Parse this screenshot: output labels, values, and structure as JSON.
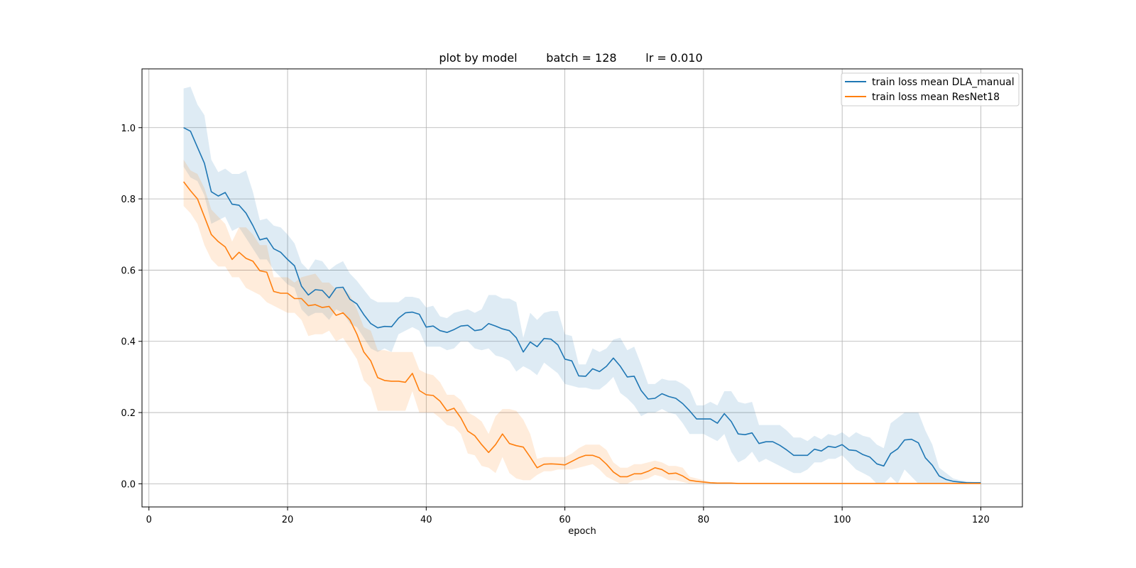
{
  "chart_data": {
    "type": "line",
    "title": "plot by model        batch = 128        lr = 0.010",
    "xlabel": "epoch",
    "ylabel": "",
    "xlim": [
      -1,
      126
    ],
    "ylim": [
      -0.065,
      1.165
    ],
    "xticks": [
      0,
      20,
      40,
      60,
      80,
      100,
      120
    ],
    "yticks": [
      0.0,
      0.2,
      0.4,
      0.6,
      0.8,
      1.0
    ],
    "ytick_labels": [
      "0.0",
      "0.2",
      "0.4",
      "0.6",
      "0.8",
      "1.0"
    ],
    "grid": true,
    "legend_position": "top-right",
    "x": [
      5,
      6,
      7,
      8,
      9,
      10,
      11,
      12,
      13,
      14,
      15,
      16,
      17,
      18,
      19,
      20,
      21,
      22,
      23,
      24,
      25,
      26,
      27,
      28,
      29,
      30,
      31,
      32,
      33,
      34,
      35,
      36,
      37,
      38,
      39,
      40,
      41,
      42,
      43,
      44,
      45,
      46,
      47,
      48,
      49,
      50,
      51,
      52,
      53,
      54,
      55,
      56,
      57,
      58,
      59,
      60,
      61,
      62,
      63,
      64,
      65,
      66,
      67,
      68,
      69,
      70,
      71,
      72,
      73,
      74,
      75,
      76,
      77,
      78,
      79,
      80,
      81,
      82,
      83,
      84,
      85,
      86,
      87,
      88,
      89,
      90,
      91,
      92,
      93,
      94,
      95,
      96,
      97,
      98,
      99,
      100,
      101,
      102,
      103,
      104,
      105,
      106,
      107,
      108,
      109,
      110,
      111,
      112,
      113,
      114,
      115,
      116,
      117,
      118,
      119,
      120
    ],
    "series": [
      {
        "name": "train loss mean DLA_manual",
        "color": "#1f77b4",
        "band_color": "#1f77b4",
        "values": [
          1.0,
          0.99,
          0.945,
          0.9,
          0.82,
          0.808,
          0.818,
          0.785,
          0.782,
          0.76,
          0.725,
          0.685,
          0.69,
          0.66,
          0.65,
          0.63,
          0.612,
          0.555,
          0.53,
          0.545,
          0.543,
          0.522,
          0.55,
          0.552,
          0.518,
          0.505,
          0.475,
          0.45,
          0.438,
          0.442,
          0.441,
          0.465,
          0.48,
          0.482,
          0.476,
          0.44,
          0.443,
          0.43,
          0.425,
          0.433,
          0.443,
          0.445,
          0.43,
          0.433,
          0.45,
          0.443,
          0.435,
          0.43,
          0.41,
          0.37,
          0.398,
          0.385,
          0.408,
          0.406,
          0.39,
          0.35,
          0.345,
          0.303,
          0.302,
          0.323,
          0.315,
          0.33,
          0.353,
          0.33,
          0.3,
          0.302,
          0.262,
          0.238,
          0.24,
          0.253,
          0.245,
          0.24,
          0.225,
          0.205,
          0.182,
          0.182,
          0.182,
          0.17,
          0.197,
          0.175,
          0.14,
          0.138,
          0.143,
          0.113,
          0.118,
          0.118,
          0.108,
          0.095,
          0.08,
          0.08,
          0.08,
          0.097,
          0.092,
          0.105,
          0.102,
          0.11,
          0.095,
          0.093,
          0.082,
          0.075,
          0.056,
          0.05,
          0.085,
          0.098,
          0.123,
          0.125,
          0.115,
          0.073,
          0.052,
          0.022,
          0.012,
          0.007,
          0.005,
          0.003,
          0.003,
          0.003
        ],
        "lower": [
          0.89,
          0.86,
          0.85,
          0.81,
          0.73,
          0.74,
          0.75,
          0.71,
          0.72,
          0.69,
          0.66,
          0.63,
          0.63,
          0.6,
          0.58,
          0.56,
          0.55,
          0.49,
          0.47,
          0.48,
          0.48,
          0.46,
          0.49,
          0.48,
          0.45,
          0.44,
          0.41,
          0.38,
          0.37,
          0.38,
          0.37,
          0.42,
          0.43,
          0.44,
          0.43,
          0.385,
          0.385,
          0.385,
          0.375,
          0.38,
          0.4,
          0.4,
          0.38,
          0.375,
          0.38,
          0.36,
          0.355,
          0.345,
          0.315,
          0.33,
          0.32,
          0.305,
          0.34,
          0.325,
          0.31,
          0.28,
          0.275,
          0.27,
          0.27,
          0.265,
          0.265,
          0.28,
          0.3,
          0.255,
          0.24,
          0.22,
          0.19,
          0.2,
          0.2,
          0.21,
          0.2,
          0.195,
          0.17,
          0.14,
          0.14,
          0.14,
          0.13,
          0.12,
          0.14,
          0.09,
          0.06,
          0.07,
          0.09,
          0.06,
          0.07,
          0.06,
          0.05,
          0.04,
          0.03,
          0.03,
          0.04,
          0.06,
          0.06,
          0.07,
          0.07,
          0.08,
          0.06,
          0.04,
          0.03,
          0.02,
          0.0,
          0.0,
          0.02,
          0.0,
          0.04,
          0.02,
          0.0,
          0.0,
          0.0,
          0.0,
          0.0,
          0.0,
          0.0,
          0.0,
          0.0,
          0.0
        ],
        "upper": [
          1.11,
          1.115,
          1.065,
          1.035,
          0.91,
          0.875,
          0.885,
          0.87,
          0.87,
          0.88,
          0.82,
          0.74,
          0.745,
          0.725,
          0.72,
          0.7,
          0.675,
          0.62,
          0.6,
          0.63,
          0.625,
          0.6,
          0.615,
          0.625,
          0.59,
          0.57,
          0.545,
          0.52,
          0.51,
          0.51,
          0.51,
          0.51,
          0.525,
          0.525,
          0.52,
          0.495,
          0.5,
          0.47,
          0.465,
          0.48,
          0.485,
          0.49,
          0.48,
          0.49,
          0.53,
          0.53,
          0.52,
          0.52,
          0.51,
          0.41,
          0.48,
          0.46,
          0.48,
          0.485,
          0.485,
          0.42,
          0.415,
          0.335,
          0.335,
          0.38,
          0.37,
          0.38,
          0.405,
          0.41,
          0.375,
          0.385,
          0.335,
          0.28,
          0.28,
          0.295,
          0.29,
          0.29,
          0.28,
          0.265,
          0.22,
          0.22,
          0.23,
          0.22,
          0.26,
          0.26,
          0.23,
          0.225,
          0.23,
          0.165,
          0.165,
          0.165,
          0.165,
          0.15,
          0.13,
          0.13,
          0.12,
          0.135,
          0.125,
          0.14,
          0.135,
          0.145,
          0.13,
          0.145,
          0.135,
          0.13,
          0.11,
          0.1,
          0.17,
          0.185,
          0.2,
          0.2,
          0.2,
          0.15,
          0.11,
          0.045,
          0.03,
          0.015,
          0.01,
          0.007,
          0.005,
          0.005
        ]
      },
      {
        "name": "train loss mean ResNet18",
        "color": "#ff7f0e",
        "band_color": "#ff7f0e",
        "values": [
          0.848,
          0.823,
          0.8,
          0.75,
          0.7,
          0.68,
          0.665,
          0.63,
          0.65,
          0.633,
          0.625,
          0.598,
          0.594,
          0.54,
          0.535,
          0.535,
          0.52,
          0.52,
          0.5,
          0.503,
          0.495,
          0.498,
          0.473,
          0.48,
          0.46,
          0.42,
          0.37,
          0.345,
          0.298,
          0.29,
          0.288,
          0.288,
          0.285,
          0.31,
          0.262,
          0.25,
          0.248,
          0.232,
          0.205,
          0.212,
          0.185,
          0.148,
          0.135,
          0.11,
          0.088,
          0.11,
          0.14,
          0.113,
          0.107,
          0.103,
          0.075,
          0.045,
          0.055,
          0.056,
          0.055,
          0.053,
          0.063,
          0.073,
          0.08,
          0.08,
          0.073,
          0.055,
          0.033,
          0.02,
          0.02,
          0.028,
          0.028,
          0.035,
          0.045,
          0.04,
          0.028,
          0.03,
          0.022,
          0.01,
          0.007,
          0.005,
          0.003,
          0.002,
          0.002,
          0.002,
          0.001,
          0.001,
          0.001,
          0.001,
          0.001,
          0.001,
          0.001,
          0.001,
          0.001,
          0.001,
          0.001,
          0.001,
          0.001,
          0.001,
          0.001,
          0.001,
          0.001,
          0.001,
          0.001,
          0.001,
          0.001,
          0.001,
          0.001,
          0.001,
          0.001,
          0.001,
          0.001,
          0.001,
          0.001,
          0.001,
          0.001,
          0.001,
          0.001,
          0.001,
          0.001,
          0.001
        ],
        "lower": [
          0.78,
          0.76,
          0.73,
          0.67,
          0.63,
          0.61,
          0.61,
          0.58,
          0.58,
          0.55,
          0.54,
          0.53,
          0.51,
          0.5,
          0.49,
          0.48,
          0.48,
          0.46,
          0.415,
          0.42,
          0.42,
          0.43,
          0.4,
          0.41,
          0.38,
          0.35,
          0.29,
          0.27,
          0.205,
          0.205,
          0.205,
          0.205,
          0.205,
          0.26,
          0.2,
          0.2,
          0.2,
          0.185,
          0.165,
          0.16,
          0.14,
          0.085,
          0.08,
          0.05,
          0.045,
          0.03,
          0.075,
          0.03,
          0.015,
          0.01,
          0.01,
          0.025,
          0.035,
          0.035,
          0.04,
          0.04,
          0.04,
          0.045,
          0.05,
          0.055,
          0.04,
          0.02,
          0.01,
          0.0,
          0.0,
          0.01,
          0.01,
          0.015,
          0.025,
          0.02,
          0.01,
          0.01,
          0.005,
          0.0,
          0.0,
          0.0,
          0.0,
          0.0,
          0.0,
          0.0,
          0.0,
          0.0,
          0.0,
          0.0,
          0.0,
          0.0,
          0.0,
          0.0,
          0.0,
          0.0,
          0.0,
          0.0,
          0.0,
          0.0,
          0.0,
          0.0,
          0.0,
          0.0,
          0.0,
          0.0,
          0.0,
          0.0,
          0.0,
          0.0,
          0.0,
          0.0,
          0.0,
          0.0,
          0.0,
          0.0,
          0.0,
          0.0,
          0.0,
          0.0,
          0.0,
          0.0
        ],
        "upper": [
          0.91,
          0.88,
          0.87,
          0.83,
          0.77,
          0.75,
          0.73,
          0.68,
          0.72,
          0.72,
          0.7,
          0.67,
          0.67,
          0.58,
          0.58,
          0.58,
          0.565,
          0.58,
          0.585,
          0.59,
          0.565,
          0.565,
          0.545,
          0.55,
          0.53,
          0.49,
          0.44,
          0.43,
          0.375,
          0.375,
          0.37,
          0.37,
          0.37,
          0.37,
          0.32,
          0.31,
          0.305,
          0.285,
          0.25,
          0.25,
          0.235,
          0.2,
          0.19,
          0.175,
          0.14,
          0.19,
          0.21,
          0.21,
          0.205,
          0.18,
          0.14,
          0.07,
          0.075,
          0.075,
          0.075,
          0.075,
          0.085,
          0.1,
          0.11,
          0.11,
          0.11,
          0.095,
          0.06,
          0.045,
          0.045,
          0.055,
          0.055,
          0.06,
          0.065,
          0.06,
          0.05,
          0.05,
          0.045,
          0.02,
          0.015,
          0.01,
          0.005,
          0.004,
          0.004,
          0.003,
          0.002,
          0.002,
          0.002,
          0.002,
          0.002,
          0.002,
          0.002,
          0.002,
          0.002,
          0.002,
          0.002,
          0.002,
          0.002,
          0.002,
          0.002,
          0.002,
          0.002,
          0.002,
          0.002,
          0.002,
          0.002,
          0.002,
          0.002,
          0.002,
          0.002,
          0.002,
          0.002,
          0.002,
          0.002,
          0.002,
          0.002,
          0.002,
          0.002,
          0.002,
          0.002,
          0.002
        ]
      }
    ]
  }
}
